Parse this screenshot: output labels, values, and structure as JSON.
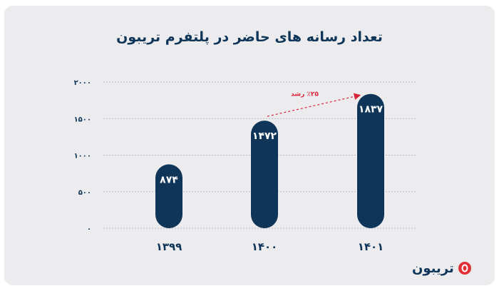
{
  "title": "تعداد رسانه های حاضر در پلتفرم تریبون",
  "brand": {
    "name": "تریبون",
    "accent": "#e0303a"
  },
  "colors": {
    "bar": "#0f3558",
    "grid": "#b7bcc6",
    "arrow": "#d9253a",
    "text": "#0f3558"
  },
  "chart_data": {
    "type": "bar",
    "categories": [
      "۱۳۹۹",
      "۱۴۰۰",
      "۱۴۰۱"
    ],
    "values": [
      874,
      1472,
      1837
    ],
    "value_labels": [
      "۸۷۴",
      "۱۴۷۲",
      "۱۸۳۷"
    ],
    "y_ticks": [
      0,
      500,
      1000,
      1500,
      2000
    ],
    "y_tick_labels": [
      "۰",
      "۵۰۰",
      "۱۰۰۰",
      "۱۵۰۰",
      "۲۰۰۰"
    ],
    "ylim": [
      0,
      2000
    ],
    "grid": true,
    "annotation": {
      "text": "٪۲۵ رشد",
      "from": "۱۴۰۰",
      "to": "۱۴۰۱"
    }
  }
}
